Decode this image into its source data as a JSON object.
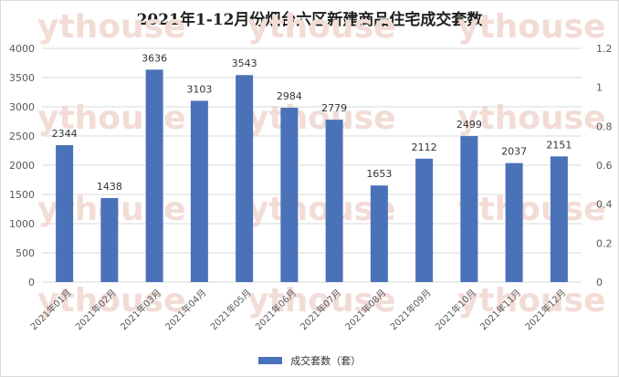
{
  "title": "2021年1-12月份烟台六区新建商品住宅成交套数",
  "chart_data": {
    "type": "bar",
    "title": "2021年1-12月份烟台六区新建商品住宅成交套数",
    "categories": [
      "2021年01月",
      "2021年02月",
      "2021年03月",
      "2021年04月",
      "2021年05月",
      "2021年06月",
      "2021年07月",
      "2021年08月",
      "2021年09月",
      "2021年10月",
      "2021年11月",
      "2021年12月"
    ],
    "series": [
      {
        "name": "成交套数（套）",
        "values": [
          2344,
          1438,
          3636,
          3103,
          3543,
          2984,
          2779,
          1653,
          2112,
          2499,
          2037,
          2151
        ],
        "color": "#4a72b8"
      }
    ],
    "ylim": [
      0,
      4000
    ],
    "yticks": [
      "0",
      "500",
      "1000",
      "1500",
      "2000",
      "2500",
      "3000",
      "3500",
      "4000"
    ],
    "y2lim": [
      0,
      1.2
    ],
    "y2ticks": [
      "0",
      "0.2",
      "0.4",
      "0.6",
      "0.8",
      "1",
      "1.2"
    ],
    "grid": true,
    "legend": "bottom",
    "watermark": "ythouse"
  }
}
